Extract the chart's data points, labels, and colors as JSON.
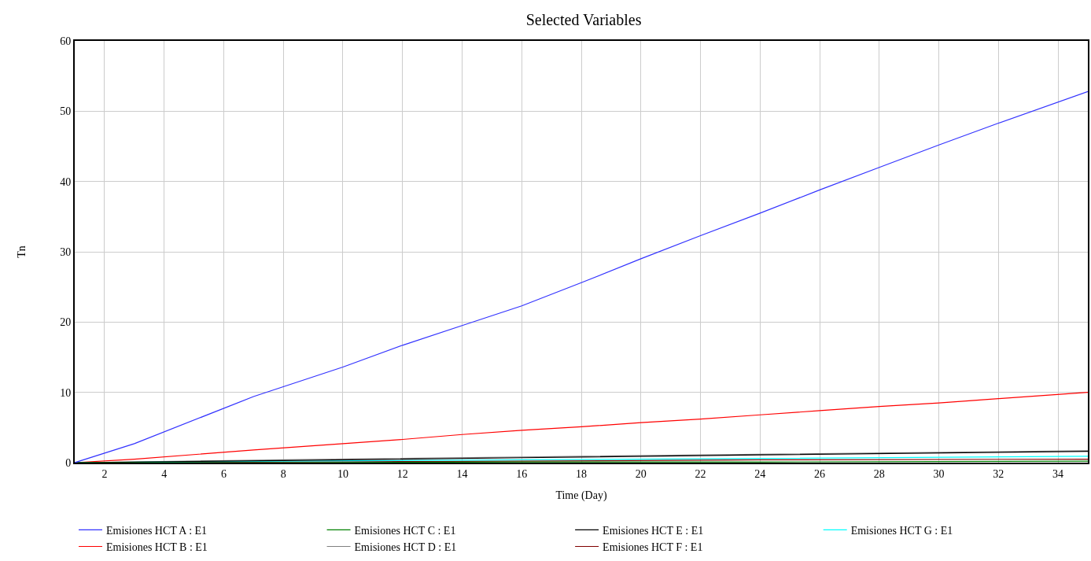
{
  "chart_data": {
    "type": "line",
    "title": "Selected Variables",
    "xlabel": "Time (Day)",
    "ylabel": "Tn",
    "xlim": [
      1,
      35
    ],
    "xticks": [
      2,
      4,
      6,
      8,
      10,
      12,
      14,
      16,
      18,
      20,
      22,
      24,
      26,
      28,
      30,
      32,
      34
    ],
    "ylim": [
      0,
      60
    ],
    "yticks": [
      0,
      10,
      20,
      30,
      40,
      50,
      60
    ],
    "grid": true,
    "legend": "bottom",
    "marker": "none",
    "line_style": "solid",
    "x": [
      1,
      3,
      7,
      10,
      12,
      14,
      16,
      18,
      20,
      22,
      24,
      26,
      28,
      30,
      32,
      35
    ],
    "series": [
      {
        "name": "Emisiones HCT A : E1",
        "color": "#3333ff",
        "values": [
          0,
          2.7,
          9.4,
          13.6,
          16.7,
          19.5,
          22.3,
          25.6,
          29,
          32.3,
          35.5,
          38.8,
          42,
          45.2,
          48.3,
          52.8
        ]
      },
      {
        "name": "Emisiones HCT C : E1",
        "color": "#008000",
        "x": [
          1,
          8,
          16,
          24,
          35
        ],
        "values": [
          0,
          0,
          0.1,
          0.1,
          0.2
        ]
      },
      {
        "name": "Emisiones HCT E : E1",
        "color": "#000000",
        "x": [
          1,
          8,
          16,
          24,
          35
        ],
        "values": [
          0,
          0.3,
          0.7,
          1.1,
          1.6
        ]
      },
      {
        "name": "Emisiones HCT G : E1",
        "color": "#00ffff",
        "x": [
          1,
          8,
          16,
          24,
          35
        ],
        "values": [
          0,
          0.2,
          0.4,
          0.6,
          0.9
        ]
      },
      {
        "name": "Emisiones HCT B : E1",
        "color": "#ff0000",
        "values": [
          0,
          0.5,
          1.8,
          2.7,
          3.3,
          4,
          4.6,
          5.1,
          5.7,
          6.2,
          6.8,
          7.4,
          8,
          8.5,
          9.1,
          10
        ]
      },
      {
        "name": "Emisiones HCT D : E1",
        "color": "#808080",
        "x": [
          1,
          8,
          16,
          24,
          35
        ],
        "values": [
          0,
          0.4,
          0.8,
          1.2,
          1.7
        ]
      },
      {
        "name": "Emisiones HCT F : E1",
        "color": "#800000",
        "x": [
          1,
          8,
          16,
          24,
          35
        ],
        "values": [
          0,
          0.1,
          0.2,
          0.4,
          0.5
        ]
      }
    ]
  }
}
